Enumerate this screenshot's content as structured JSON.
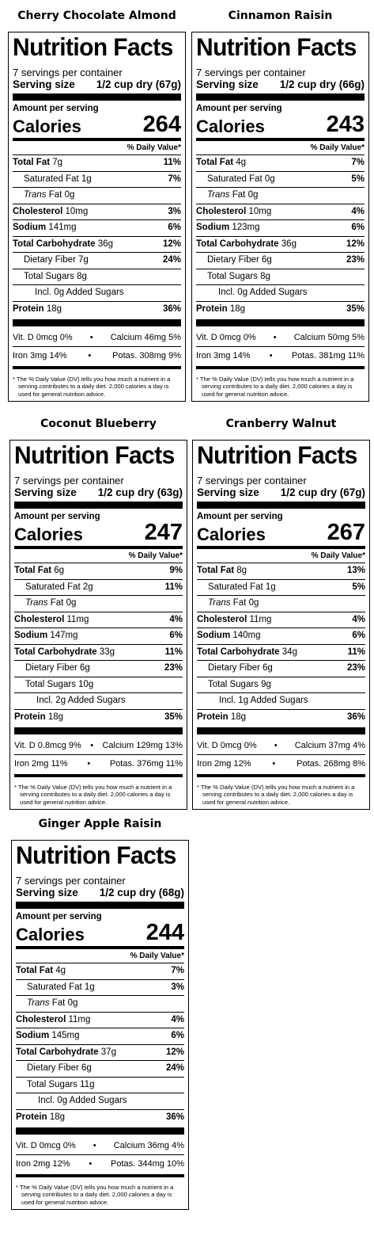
{
  "labels": [
    {
      "product": "Cherry Chocolate Almond",
      "heading": "Nutrition Facts",
      "servings": "7 servings per container",
      "serving_size_label": "Serving size",
      "serving_size_value": "1/2 cup dry (67g)",
      "amount_per_serving": "Amount per serving",
      "calories_label": "Calories",
      "calories": "264",
      "dv_header": "% Daily Value*",
      "total_fat": "7g",
      "total_fat_dv": "11%",
      "sat_fat": "1g",
      "sat_fat_dv": "7%",
      "trans_fat": "0g",
      "cholesterol": "10mg",
      "cholesterol_dv": "3%",
      "sodium": "141mg",
      "sodium_dv": "6%",
      "total_carb": "36g",
      "total_carb_dv": "12%",
      "fiber": "7g",
      "fiber_dv": "24%",
      "total_sugars": "8g",
      "added_sugars": "0g",
      "protein": "18g",
      "protein_dv": "36%",
      "vit_d": "Vit. D 0mcg 0%",
      "calcium": "Calcium 46mg 5%",
      "iron": "Iron 3mg 14%",
      "potassium": "Potas. 308mg 9%",
      "footnote": "* The % Daily Value (DV) tells you how much a nutrient in a serving contributes to a daily diet. 2,000 calories a day is used for general nutrition advice."
    },
    {
      "product": "Cinnamon Raisin",
      "heading": "Nutrition Facts",
      "servings": "7 servings per container",
      "serving_size_label": "Serving size",
      "serving_size_value": "1/2 cup dry (66g)",
      "amount_per_serving": "Amount per serving",
      "calories_label": "Calories",
      "calories": "243",
      "dv_header": "% Daily Value*",
      "total_fat": "4g",
      "total_fat_dv": "7%",
      "sat_fat": "0g",
      "sat_fat_dv": "5%",
      "trans_fat": "0g",
      "cholesterol": "10mg",
      "cholesterol_dv": "4%",
      "sodium": "123mg",
      "sodium_dv": "6%",
      "total_carb": "36g",
      "total_carb_dv": "12%",
      "fiber": "6g",
      "fiber_dv": "23%",
      "total_sugars": "8g",
      "added_sugars": "0g",
      "protein": "18g",
      "protein_dv": "35%",
      "vit_d": "Vit. D 0mcg 0%",
      "calcium": "Calcium 50mg 5%",
      "iron": "Iron 3mg 14%",
      "potassium": "Potas. 381mg 11%",
      "footnote": "* The % Daily Value (DV) tells you how much a nutrient in a serving contributes to a daily diet. 2,000 calories a day is used for general nutrition advice."
    },
    {
      "product": "Coconut Blueberry",
      "heading": "Nutrition Facts",
      "servings": "7 servings per container",
      "serving_size_label": "Serving size",
      "serving_size_value": "1/2 cup dry (63g)",
      "amount_per_serving": "Amount per serving",
      "calories_label": "Calories",
      "calories": "247",
      "dv_header": "% Daily Value*",
      "total_fat": "6g",
      "total_fat_dv": "9%",
      "sat_fat": "2g",
      "sat_fat_dv": "11%",
      "trans_fat": "0g",
      "cholesterol": "11mg",
      "cholesterol_dv": "4%",
      "sodium": "147mg",
      "sodium_dv": "6%",
      "total_carb": "33g",
      "total_carb_dv": "11%",
      "fiber": "6g",
      "fiber_dv": "23%",
      "total_sugars": "10g",
      "added_sugars": "2g",
      "protein": "18g",
      "protein_dv": "35%",
      "vit_d": "Vit. D 0.8mcg 9%",
      "calcium": "Calcium 129mg 13%",
      "iron": "Iron 2mg 11%",
      "potassium": "Potas. 376mg 11%",
      "footnote": "* The % Daily Value (DV) tells you how much a nutrient in a serving contributes to a daily diet. 2,000 calories a day is used for general nutrition advice."
    },
    {
      "product": "Cranberry Walnut",
      "heading": "Nutrition Facts",
      "servings": "7 servings per container",
      "serving_size_label": "Serving size",
      "serving_size_value": "1/2 cup dry (67g)",
      "amount_per_serving": "Amount per serving",
      "calories_label": "Calories",
      "calories": "267",
      "dv_header": "% Daily Value*",
      "total_fat": "8g",
      "total_fat_dv": "13%",
      "sat_fat": "1g",
      "sat_fat_dv": "5%",
      "trans_fat": "0g",
      "cholesterol": "11mg",
      "cholesterol_dv": "4%",
      "sodium": "140mg",
      "sodium_dv": "6%",
      "total_carb": "34g",
      "total_carb_dv": "11%",
      "fiber": "6g",
      "fiber_dv": "23%",
      "total_sugars": "9g",
      "added_sugars": "1g",
      "protein": "18g",
      "protein_dv": "36%",
      "vit_d": "Vit. D 0mcg 0%",
      "calcium": "Calcium 37mg 4%",
      "iron": "Iron 2mg 12%",
      "potassium": "Potas. 268mg 8%",
      "footnote": "* The % Daily Value (DV) tells you how much a nutrient in a serving contributes to a daily diet. 2,000 calories a day is used for general nutrition advice."
    },
    {
      "product": "Ginger Apple Raisin",
      "heading": "Nutrition Facts",
      "servings": "7 servings per container",
      "serving_size_label": "Serving size",
      "serving_size_value": "1/2 cup dry (68g)",
      "amount_per_serving": "Amount per serving",
      "calories_label": "Calories",
      "calories": "244",
      "dv_header": "% Daily Value*",
      "total_fat": "4g",
      "total_fat_dv": "7%",
      "sat_fat": "1g",
      "sat_fat_dv": "3%",
      "trans_fat": "0g",
      "cholesterol": "11mg",
      "cholesterol_dv": "4%",
      "sodium": "145mg",
      "sodium_dv": "6%",
      "total_carb": "37g",
      "total_carb_dv": "12%",
      "fiber": "6g",
      "fiber_dv": "24%",
      "total_sugars": "11g",
      "added_sugars": "0g",
      "protein": "18g",
      "protein_dv": "36%",
      "vit_d": "Vit. D 0mcg 0%",
      "calcium": "Calcium 36mg 4%",
      "iron": "Iron 2mg 12%",
      "potassium": "Potas. 344mg 10%",
      "footnote": "* The % Daily Value (DV) tells you how much a nutrient in a serving contributes to a daily diet. 2,000 calories a day is used for general nutrition advice."
    }
  ],
  "row_labels": {
    "total_fat": "Total Fat",
    "sat_fat": "Saturated Fat",
    "trans": "Trans",
    "trans_suffix": "Fat",
    "cholesterol": "Cholesterol",
    "sodium": "Sodium",
    "total_carb": "Total Carbohydrate",
    "fiber": "Dietary Fiber",
    "total_sugars": "Total Sugars",
    "incl": "Incl.",
    "added_sugars_suffix": "Added Sugars",
    "protein": "Protein",
    "bullet": "•"
  }
}
